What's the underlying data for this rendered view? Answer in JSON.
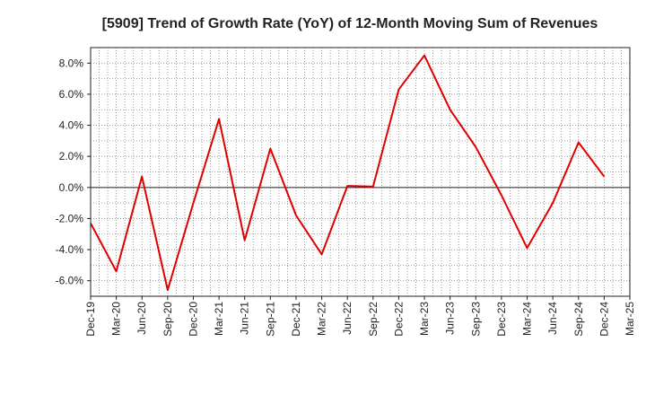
{
  "chart_data": {
    "type": "line",
    "title": "[5909]  Trend of Growth Rate (YoY) of 12-Month Moving Sum of Revenues",
    "xlabel": "",
    "ylabel": "",
    "x_ticks": [
      "Dec-19",
      "Mar-20",
      "Jun-20",
      "Sep-20",
      "Dec-20",
      "Mar-21",
      "Jun-21",
      "Sep-21",
      "Dec-21",
      "Mar-22",
      "Jun-22",
      "Sep-22",
      "Dec-22",
      "Mar-23",
      "Jun-23",
      "Sep-23",
      "Dec-23",
      "Mar-24",
      "Jun-24",
      "Sep-24",
      "Dec-24",
      "Mar-25"
    ],
    "y_ticks": [
      "8.0%",
      "6.0%",
      "4.0%",
      "2.0%",
      "0.0%",
      "-2.0%",
      "-4.0%",
      "-6.0%"
    ],
    "y_tick_values": [
      8,
      6,
      4,
      2,
      0,
      -2,
      -4,
      -6
    ],
    "ylim": [
      -7,
      9
    ],
    "grid": true,
    "line_color": "#e00000",
    "series": [
      {
        "x": [
          "Dec-19",
          "Mar-20",
          "Jun-20",
          "Sep-20",
          "Dec-20",
          "Mar-21",
          "Jun-21",
          "Sep-21",
          "Dec-21",
          "Mar-22",
          "Jun-22",
          "Sep-22",
          "Dec-22",
          "Mar-23",
          "Jun-23",
          "Sep-23",
          "Dec-23",
          "Mar-24",
          "Jun-24",
          "Sep-24",
          "Dec-24"
        ],
        "values": [
          -2.3,
          -5.4,
          0.7,
          -6.6,
          -1.0,
          4.4,
          -3.4,
          2.5,
          -1.8,
          -4.3,
          0.1,
          0.05,
          6.3,
          8.5,
          5.0,
          2.6,
          -0.5,
          -3.9,
          -1.0,
          2.9,
          0.7
        ]
      }
    ]
  }
}
